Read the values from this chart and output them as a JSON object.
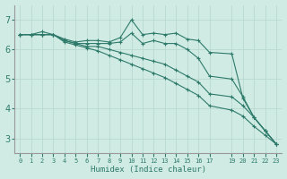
{
  "background_color": "#d0ebe4",
  "grid_color": "#b8d8d0",
  "line_color": "#2d7a6a",
  "xlabel": "Humidex (Indice chaleur)",
  "xlim": [
    -0.5,
    23.5
  ],
  "ylim": [
    2.5,
    7.5
  ],
  "yticks": [
    3,
    4,
    5,
    6,
    7
  ],
  "xtick_positions": [
    0,
    1,
    2,
    3,
    4,
    5,
    6,
    7,
    8,
    9,
    10,
    11,
    12,
    13,
    14,
    15,
    16,
    17,
    19,
    20,
    21,
    22,
    23
  ],
  "xtick_labels": [
    "0",
    "1",
    "2",
    "3",
    "4",
    "5",
    "6",
    "7",
    "8",
    "9",
    "10",
    "11",
    "12",
    "13",
    "14",
    "15",
    "16",
    "17",
    "19",
    "20",
    "21",
    "22",
    "23"
  ],
  "series": [
    {
      "x": [
        0,
        1,
        2,
        3,
        4,
        5,
        6,
        7,
        8,
        9,
        10,
        11,
        12,
        13,
        14,
        15,
        16,
        17,
        19,
        20,
        21,
        22,
        23
      ],
      "y": [
        6.5,
        6.5,
        6.6,
        6.5,
        6.35,
        6.25,
        6.3,
        6.3,
        6.25,
        6.4,
        7.0,
        6.5,
        6.55,
        6.5,
        6.55,
        6.35,
        6.3,
        5.9,
        5.85,
        4.35,
        3.7,
        3.25,
        2.8
      ]
    },
    {
      "x": [
        0,
        1,
        2,
        3,
        4,
        5,
        6,
        7,
        8,
        9,
        10,
        11,
        12,
        13,
        14,
        15,
        16,
        17,
        19,
        20,
        21,
        22,
        23
      ],
      "y": [
        6.5,
        6.5,
        6.5,
        6.5,
        6.3,
        6.2,
        6.2,
        6.2,
        6.2,
        6.25,
        6.55,
        6.2,
        6.3,
        6.2,
        6.2,
        6.0,
        5.7,
        5.1,
        5.0,
        4.4,
        3.7,
        3.25,
        2.8
      ]
    },
    {
      "x": [
        0,
        1,
        2,
        3,
        4,
        5,
        6,
        7,
        8,
        9,
        10,
        11,
        12,
        13,
        14,
        15,
        16,
        17,
        19,
        20,
        21,
        22,
        23
      ],
      "y": [
        6.5,
        6.5,
        6.5,
        6.5,
        6.3,
        6.2,
        6.1,
        6.1,
        6.0,
        5.9,
        5.8,
        5.7,
        5.6,
        5.5,
        5.3,
        5.1,
        4.9,
        4.5,
        4.4,
        4.1,
        3.7,
        3.25,
        2.8
      ]
    },
    {
      "x": [
        0,
        1,
        2,
        3,
        4,
        5,
        6,
        7,
        8,
        9,
        10,
        11,
        12,
        13,
        14,
        15,
        16,
        17,
        19,
        20,
        21,
        22,
        23
      ],
      "y": [
        6.5,
        6.5,
        6.5,
        6.5,
        6.25,
        6.15,
        6.05,
        5.95,
        5.8,
        5.65,
        5.5,
        5.35,
        5.2,
        5.05,
        4.85,
        4.65,
        4.45,
        4.1,
        3.95,
        3.75,
        3.4,
        3.1,
        2.8
      ]
    }
  ]
}
